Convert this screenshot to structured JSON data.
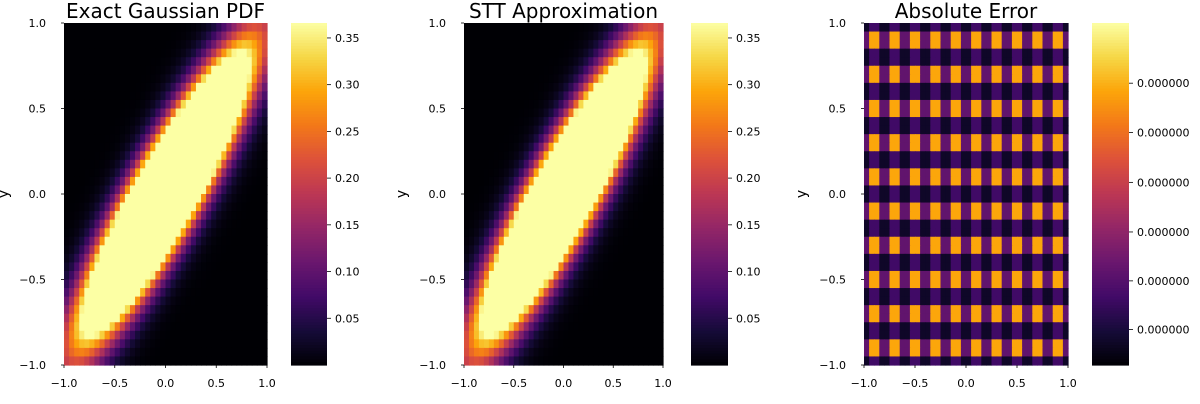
{
  "chart_data": [
    {
      "type": "heatmap",
      "title": "Exact Gaussian PDF",
      "ylabel": "y",
      "xlim": [
        -1.0,
        1.0
      ],
      "ylim": [
        -1.0,
        1.0
      ],
      "x_ticks": [
        "−1.0",
        "−0.5",
        "0.0",
        "0.5",
        "1.0"
      ],
      "y_ticks": [
        "−1.0",
        "−0.5",
        "0.0",
        "0.5",
        "1.0"
      ],
      "grid_size": 40,
      "function": "bivariate Gaussian, mean (0,0), sigma 0.5, correlation 0.9",
      "colormap": "inferno",
      "color_range": [
        0.0,
        0.366
      ],
      "colorbar_ticks": [
        "0.05",
        "0.10",
        "0.15",
        "0.20",
        "0.25",
        "0.30",
        "0.35"
      ],
      "grid": false
    },
    {
      "type": "heatmap",
      "title": "STT Approximation",
      "ylabel": "y",
      "xlim": [
        -1.0,
        1.0
      ],
      "ylim": [
        -1.0,
        1.0
      ],
      "x_ticks": [
        "−1.0",
        "−0.5",
        "0.0",
        "0.5",
        "1.0"
      ],
      "y_ticks": [
        "−1.0",
        "−0.5",
        "0.0",
        "0.5",
        "1.0"
      ],
      "grid_size": 40,
      "function": "bivariate Gaussian, mean (0,0), sigma 0.5, correlation 0.9",
      "colormap": "inferno",
      "color_range": [
        0.0,
        0.366
      ],
      "colorbar_ticks": [
        "0.05",
        "0.10",
        "0.15",
        "0.20",
        "0.25",
        "0.30",
        "0.35"
      ],
      "grid": false
    },
    {
      "type": "heatmap",
      "title": "Absolute Error",
      "ylabel": "y",
      "xlim": [
        -1.0,
        1.0
      ],
      "ylim": [
        -1.0,
        1.0
      ],
      "x_ticks": [
        "−1.0",
        "−0.5",
        "0.0",
        "0.5",
        "1.0"
      ],
      "y_ticks": [
        "−1.0",
        "−0.5",
        "0.0",
        "0.5",
        "1.0"
      ],
      "grid_size": 40,
      "function": "periodic near-zero error pattern (~10 cycles per axis)",
      "colormap": "inferno",
      "color_range": [
        0.0,
        1.0
      ],
      "colorbar_ticks": [
        "0.000000",
        "0.000000",
        "0.000000",
        "0.000000",
        "0.000000",
        "0.000000"
      ],
      "grid": false
    }
  ]
}
